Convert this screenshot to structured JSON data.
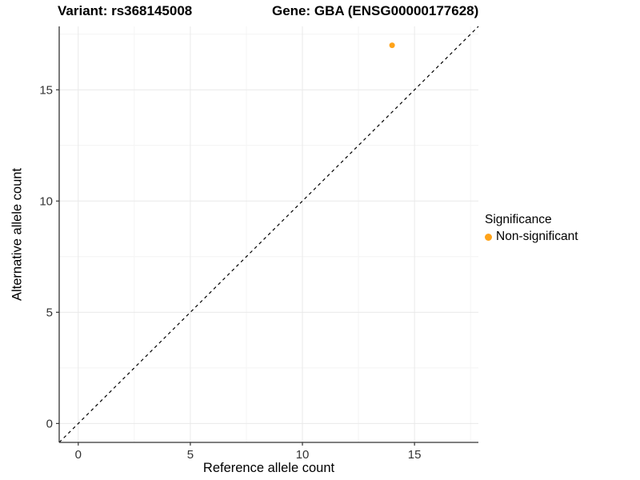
{
  "chart_data": {
    "type": "scatter",
    "titles": [
      "Variant: rs368145008",
      "Gene: GBA (ENSG00000177628)"
    ],
    "xlabel": "Reference allele count",
    "ylabel": "Alternative allele count",
    "xlim": [
      -0.85,
      17.85
    ],
    "ylim": [
      -0.85,
      17.85
    ],
    "x_ticks": [
      0,
      5,
      10,
      15
    ],
    "y_ticks": [
      0,
      5,
      10,
      15
    ],
    "x_minor_ticks": [
      2.5,
      7.5,
      12.5,
      17.5
    ],
    "y_minor_ticks": [
      2.5,
      7.5,
      12.5,
      17.5
    ],
    "grid": true,
    "points": [
      {
        "x": 14,
        "y": 17,
        "series": "Non-significant",
        "color": "#FFA319"
      }
    ],
    "abline": {
      "slope": 1,
      "intercept": 0,
      "linetype": "dashed",
      "color": "#000000"
    },
    "legend": {
      "title": "Significance",
      "position": "right",
      "items": [
        {
          "label": "Non-significant",
          "color": "#FFA319"
        }
      ]
    }
  },
  "colors": {
    "axis": "#333333",
    "tick_text": "#333333",
    "grid_major": "#e9e9e9",
    "grid_minor": "#f4f4f4",
    "background": "#ffffff"
  }
}
